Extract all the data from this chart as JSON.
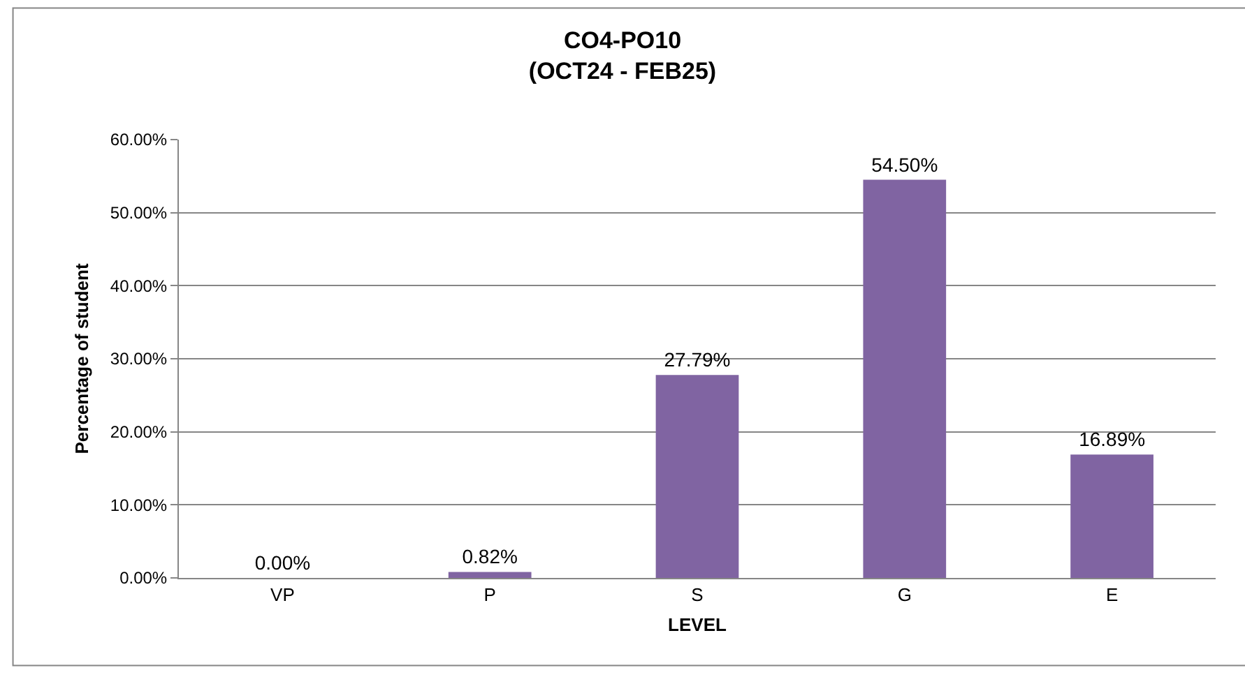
{
  "chart_data": {
    "type": "bar",
    "title": "CO4-PO10\n(OCT24 - FEB25)",
    "xlabel": "LEVEL",
    "ylabel": "Percentage of student",
    "categories": [
      "VP",
      "P",
      "S",
      "G",
      "E"
    ],
    "values": [
      0,
      0.82,
      27.79,
      54.5,
      16.89
    ],
    "value_labels": [
      "0.00%",
      "0.82%",
      "27.79%",
      "54.50%",
      "16.89%"
    ],
    "color": "#8064a2",
    "ylim": [
      0,
      60
    ],
    "yticks": [
      {
        "value": 0,
        "label": "0.00%"
      },
      {
        "value": 10,
        "label": "10.00%"
      },
      {
        "value": 20,
        "label": "20.00%"
      },
      {
        "value": 30,
        "label": "30.00%"
      },
      {
        "value": 40,
        "label": "40.00%"
      },
      {
        "value": 50,
        "label": "50.00%"
      },
      {
        "value": 60,
        "label": "60.00%"
      }
    ],
    "grid": "y",
    "legend": false
  }
}
